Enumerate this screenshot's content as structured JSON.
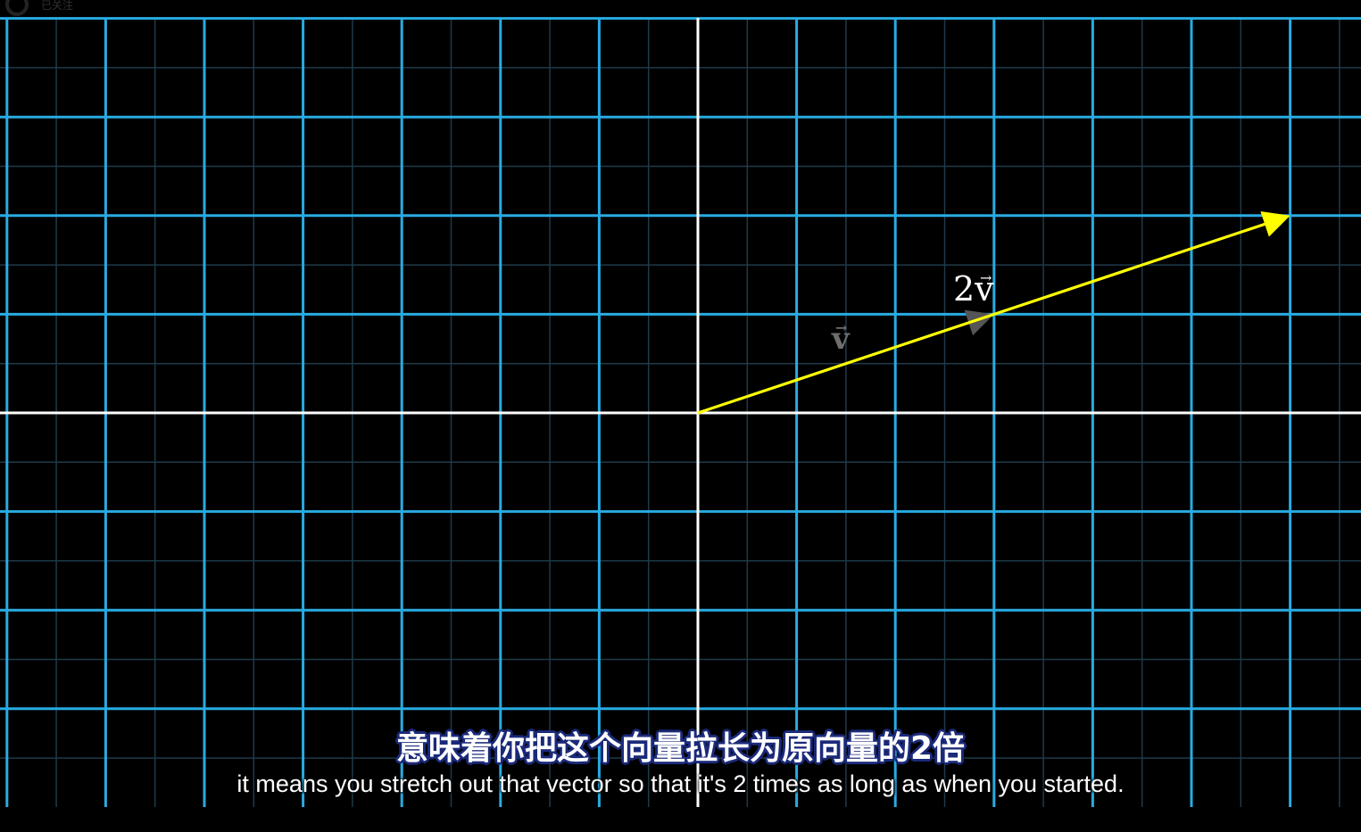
{
  "overlay": {
    "follow_label": "已关注"
  },
  "scene": {
    "colors": {
      "background": "#000000",
      "major_grid": "#29abe2",
      "minor_grid": "#1e3a4a",
      "axes": "#ffffff",
      "vector_2v": "#ffff00",
      "vector_v": "#555555"
    },
    "grid": {
      "x_range": [
        -7,
        6.5
      ],
      "y_range": [
        -4,
        4
      ],
      "major_step": 1,
      "minor_step": 0.5
    },
    "vectors": [
      {
        "id": "2v",
        "tail": [
          0,
          0
        ],
        "head": [
          6,
          2
        ],
        "label": "2v",
        "color": "#ffff00"
      },
      {
        "id": "v",
        "tail": [
          0,
          0
        ],
        "head": [
          3,
          1
        ],
        "label": "v",
        "color": "#555555"
      }
    ]
  },
  "subtitles": {
    "zh": "意味着你把这个向量拉长为原向量的2倍",
    "en": "it means you stretch out that vector so that it's 2 times as long as when you started."
  }
}
